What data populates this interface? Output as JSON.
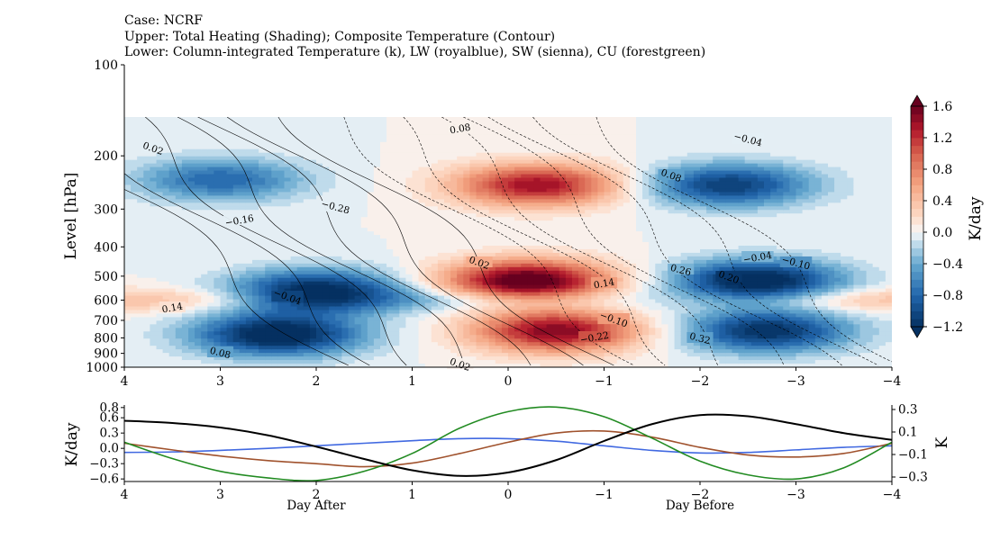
{
  "title_lines": [
    "Case: NCRF",
    "Upper: Total Heating (Shading); Composite Temperature (Contour)",
    "Lower: Column-integrated Temperature (k), LW (royalblue), SW (sienna), CU (forestgreen)"
  ],
  "chart_data": [
    {
      "type": "heatmap",
      "ylabel": "Level [hPa]",
      "yscale": "log",
      "ylim": [
        1000,
        100
      ],
      "yticks": [
        "100",
        "200",
        "300",
        "400",
        "500",
        "600",
        "700",
        "800",
        "900",
        "1000"
      ],
      "xlim": [
        4,
        -4
      ],
      "xticks": [
        "4",
        "3",
        "2",
        "1",
        "0",
        "−1",
        "−2",
        "−3",
        "−4"
      ],
      "colorbar": {
        "label": "K/day",
        "ticks": [
          "1.6",
          "1.2",
          "0.8",
          "0.4",
          "0.0",
          "−0.4",
          "−0.8",
          "−1.2"
        ],
        "range": [
          -1.2,
          1.6
        ],
        "extend": "both",
        "colormap": "RdBu_r"
      },
      "contour_labels": [
        "0.02",
        "0.08",
        "−0.04",
        "0.08",
        "−0.16",
        "−0.28",
        "0.02",
        "0.14",
        "0.26",
        "0.20",
        "−0.04",
        "−0.10",
        "−0.04",
        "0.14",
        "0.08",
        "−0.10",
        "−0.22",
        "0.32",
        "0.02"
      ],
      "shading_features": [
        {
          "name": "upper heating maximum",
          "x": -0.3,
          "p": 250,
          "value": 1.4
        },
        {
          "name": "mid heating maximum",
          "x": -0.2,
          "p": 520,
          "value": 1.8
        },
        {
          "name": "lower heating maximum",
          "x": -0.5,
          "p": 760,
          "value": 1.5
        },
        {
          "name": "cooling before, upper",
          "x": -2.3,
          "p": 250,
          "value": -1.1
        },
        {
          "name": "cooling before, mid",
          "x": -2.6,
          "p": 520,
          "value": -1.4
        },
        {
          "name": "cooling before, lower",
          "x": -2.7,
          "p": 760,
          "value": -1.2
        },
        {
          "name": "cooling after, upper",
          "x": 3.0,
          "p": 240,
          "value": -0.8
        },
        {
          "name": "cooling after, mid",
          "x": 2.0,
          "p": 560,
          "value": -1.3
        },
        {
          "name": "cooling after, lower",
          "x": 2.4,
          "p": 780,
          "value": -1.4
        }
      ]
    },
    {
      "type": "line",
      "xlim": [
        4,
        -4
      ],
      "xticks": [
        "4",
        "3",
        "2",
        "1",
        "0",
        "−1",
        "−2",
        "−3",
        "−4"
      ],
      "ylabel_left": "K/day",
      "ylim_left": [
        -0.65,
        0.85
      ],
      "yticks_left": [
        "0.8",
        "0.6",
        "0.3",
        "0.0",
        "−0.3",
        "−0.6"
      ],
      "ylabel_right": "K",
      "ylim_right": [
        -0.34,
        0.34
      ],
      "yticks_right": [
        "0.3",
        "0.1",
        "−0.1",
        "−0.3"
      ],
      "x_annotations": [
        {
          "text": "Day After",
          "x": 2
        },
        {
          "text": "Day Before",
          "x": -2
        }
      ],
      "x": [
        4,
        3.5,
        3,
        2.5,
        2,
        1.5,
        1,
        0.5,
        0,
        -0.5,
        -1,
        -1.5,
        -2,
        -2.5,
        -3,
        -3.5,
        -4
      ],
      "series": [
        {
          "color": "#4169e1",
          "axis": "left",
          "values": [
            -0.08,
            -0.07,
            -0.04,
            0.0,
            0.05,
            0.1,
            0.15,
            0.19,
            0.19,
            0.14,
            0.05,
            -0.04,
            -0.09,
            -0.08,
            -0.03,
            0.02,
            0.05
          ]
        },
        {
          "color": "#a0522d",
          "axis": "left",
          "values": [
            0.1,
            -0.03,
            -0.15,
            -0.24,
            -0.3,
            -0.36,
            -0.29,
            -0.1,
            0.12,
            0.3,
            0.34,
            0.22,
            0.02,
            -0.13,
            -0.17,
            -0.1,
            0.1
          ]
        },
        {
          "color": "#228b22",
          "axis": "left",
          "values": [
            0.12,
            -0.2,
            -0.45,
            -0.58,
            -0.63,
            -0.45,
            -0.1,
            0.4,
            0.72,
            0.81,
            0.62,
            0.2,
            -0.25,
            -0.52,
            -0.6,
            -0.38,
            0.12
          ]
        },
        {
          "color": "#000000",
          "axis": "right",
          "values": [
            0.2,
            0.18,
            0.14,
            0.07,
            -0.03,
            -0.14,
            -0.24,
            -0.29,
            -0.26,
            -0.15,
            0.02,
            0.17,
            0.25,
            0.24,
            0.17,
            0.09,
            0.03
          ]
        }
      ]
    }
  ]
}
